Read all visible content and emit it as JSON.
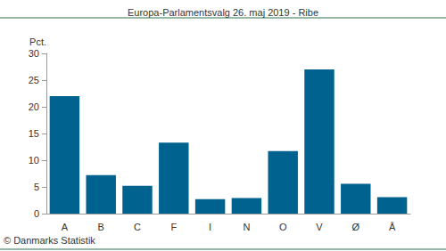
{
  "chart_data": {
    "type": "bar",
    "title": "Europa-Parlamentsvalg 26. maj 2019 - Ribe",
    "y_label": "Pct.",
    "source": "© Danmarks Statistik",
    "categories": [
      "A",
      "B",
      "C",
      "F",
      "I",
      "N",
      "O",
      "V",
      "Ø",
      "Å"
    ],
    "values": [
      22,
      7.2,
      5.2,
      13.3,
      2.7,
      2.9,
      11.7,
      27,
      5.6,
      3.1
    ],
    "color": "#00628f",
    "ylim": [
      0,
      30
    ],
    "yticks": [
      0,
      5,
      10,
      15,
      20,
      25,
      30
    ],
    "grid": false
  }
}
